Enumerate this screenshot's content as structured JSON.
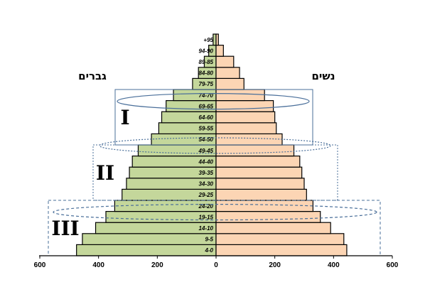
{
  "chart_data": {
    "type": "bar",
    "orientation": "horizontal-population-pyramid",
    "categories": [
      "4-0",
      "9-5",
      "14-10",
      "19-15",
      "24-20",
      "29-25",
      "34-30",
      "39-35",
      "44-40",
      "49-45",
      "54-50",
      "59-55",
      "64-60",
      "69-65",
      "74-70",
      "79-75",
      "84-80",
      "89-85",
      "94-90",
      "+95"
    ],
    "series": [
      {
        "name": "גברים",
        "side": "left",
        "color": "#c4d79b",
        "values": [
          475,
          455,
          410,
          375,
          345,
          320,
          305,
          295,
          285,
          265,
          220,
          195,
          185,
          170,
          145,
          80,
          60,
          40,
          25,
          10
        ]
      },
      {
        "name": "נשים",
        "side": "right",
        "color": "#fcd5b4",
        "values": [
          445,
          435,
          390,
          355,
          330,
          308,
          300,
          292,
          285,
          265,
          225,
          205,
          200,
          195,
          165,
          95,
          80,
          60,
          25,
          8
        ]
      }
    ],
    "xlim": [
      -600,
      600
    ],
    "xticks": [
      600,
      400,
      200,
      0,
      200,
      400,
      600
    ],
    "xtick_values": [
      -600,
      -400,
      -200,
      0,
      200,
      400,
      600
    ],
    "labels": {
      "left": "גברים",
      "right": "נשים"
    },
    "groups": [
      {
        "label": "I",
        "from": "54-50",
        "to": "74-70",
        "style": "solid"
      },
      {
        "label": "II",
        "from": "29-25",
        "to": "49-45",
        "style": "dotted"
      },
      {
        "label": "III",
        "from": "4-0",
        "to": "24-20",
        "style": "dashed"
      }
    ],
    "ellipse_rows": [
      "69-65",
      "49-45",
      "19-15"
    ],
    "colors": {
      "men": "#c4d79b",
      "women": "#fcd5b4",
      "group_line": "#4a6f9a"
    },
    "grid": false
  }
}
